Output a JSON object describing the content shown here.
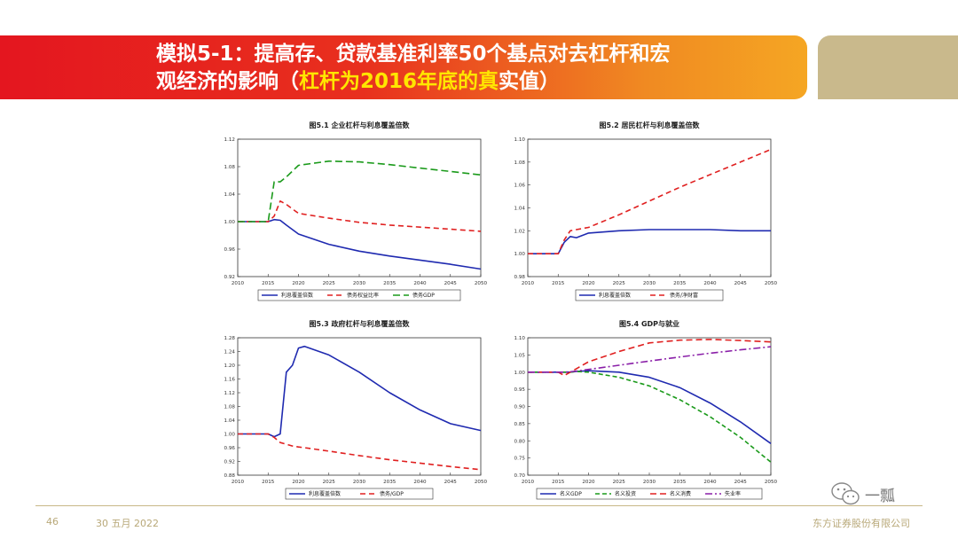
{
  "slide": {
    "title_line1": "模拟5-1：提高存、贷款基准利率50个基点对去杠杆和宏",
    "title_line2_prefix": "观经济的影响（",
    "title_line2_highlight": "杠杆为2016年底的真",
    "title_line2_suffix": "实值）",
    "page_number": "46",
    "date": "30 五月 2022",
    "company": "东方证券股份有限公司",
    "watermark": "一瓢",
    "colors": {
      "banner_red": "#e4161f",
      "banner_orange": "#f5a623",
      "tan": "#c9b98c",
      "blue": "#1f2ab0",
      "red": "#e02020",
      "green": "#1a9a1a",
      "purple": "#8a1fa8"
    }
  },
  "chart_data": [
    {
      "type": "line",
      "title": "图5.1  企业杠杆与利息覆盖倍数",
      "xlim": [
        2010,
        2050
      ],
      "ylim": [
        0.92,
        1.12
      ],
      "xticks": [
        "2010",
        "2015",
        "2020",
        "2025",
        "2030",
        "2035",
        "2040",
        "2045",
        "2050"
      ],
      "yticks": [
        "0.92",
        "0.96",
        "1.00",
        "1.04",
        "1.08",
        "1.12"
      ],
      "x": [
        2010,
        2014,
        2015,
        2016,
        2017,
        2018,
        2020,
        2025,
        2030,
        2035,
        2040,
        2045,
        2050
      ],
      "series": [
        {
          "name": "利息覆盖倍数",
          "color": "#1f2ab0",
          "dash": "",
          "values": [
            1.0,
            1.0,
            1.0,
            1.003,
            1.002,
            0.995,
            0.982,
            0.967,
            0.957,
            0.95,
            0.944,
            0.938,
            0.931
          ]
        },
        {
          "name": "债务权益比率",
          "color": "#e02020",
          "dash": "6 4",
          "values": [
            1.0,
            1.0,
            1.0,
            1.008,
            1.03,
            1.025,
            1.012,
            1.005,
            0.999,
            0.995,
            0.992,
            0.989,
            0.986
          ]
        },
        {
          "name": "债务GDP",
          "color": "#1a9a1a",
          "dash": "8 4",
          "values": [
            1.0,
            1.0,
            1.0,
            1.058,
            1.058,
            1.065,
            1.082,
            1.088,
            1.087,
            1.083,
            1.078,
            1.073,
            1.068
          ]
        }
      ]
    },
    {
      "type": "line",
      "title": "图5.2  居民杠杆与利息覆盖倍数",
      "xlim": [
        2010,
        2050
      ],
      "ylim": [
        0.98,
        1.1
      ],
      "xticks": [
        "2010",
        "2015",
        "2020",
        "2025",
        "2030",
        "2035",
        "2040",
        "2045",
        "2050"
      ],
      "yticks": [
        "0.98",
        "1.00",
        "1.02",
        "1.04",
        "1.06",
        "1.08",
        "1.10"
      ],
      "x": [
        2010,
        2014,
        2015,
        2016,
        2017,
        2018,
        2020,
        2025,
        2030,
        2035,
        2040,
        2045,
        2050
      ],
      "series": [
        {
          "name": "利息覆盖倍数",
          "color": "#1f2ab0",
          "dash": "",
          "values": [
            1.0,
            1.0,
            1.0,
            1.01,
            1.015,
            1.014,
            1.018,
            1.02,
            1.021,
            1.021,
            1.021,
            1.02,
            1.02
          ]
        },
        {
          "name": "债务/净财富",
          "color": "#e02020",
          "dash": "6 4",
          "values": [
            1.0,
            1.0,
            1.0,
            1.012,
            1.02,
            1.021,
            1.023,
            1.034,
            1.046,
            1.058,
            1.069,
            1.08,
            1.091
          ]
        }
      ]
    },
    {
      "type": "line",
      "title": "图5.3  政府杠杆与利息覆盖倍数",
      "xlim": [
        2010,
        2050
      ],
      "ylim": [
        0.88,
        1.28
      ],
      "xticks": [
        "2010",
        "2015",
        "2020",
        "2025",
        "2030",
        "2035",
        "2040",
        "2045",
        "2050"
      ],
      "yticks": [
        "0.88",
        "0.92",
        "0.96",
        "1.00",
        "1.04",
        "1.08",
        "1.12",
        "1.16",
        "1.20",
        "1.24",
        "1.28"
      ],
      "x": [
        2010,
        2014,
        2015,
        2016,
        2017,
        2018,
        2019,
        2020,
        2021,
        2025,
        2030,
        2035,
        2040,
        2045,
        2050
      ],
      "series": [
        {
          "name": "利息覆盖倍数",
          "color": "#1f2ab0",
          "dash": "",
          "values": [
            1.0,
            1.0,
            1.0,
            0.992,
            1.0,
            1.18,
            1.2,
            1.25,
            1.255,
            1.23,
            1.18,
            1.12,
            1.07,
            1.03,
            1.01
          ]
        },
        {
          "name": "债务/GDP",
          "color": "#e02020",
          "dash": "6 4",
          "values": [
            1.0,
            1.0,
            1.0,
            0.99,
            0.975,
            0.97,
            0.965,
            0.962,
            0.96,
            0.95,
            0.937,
            0.925,
            0.915,
            0.905,
            0.896
          ]
        }
      ]
    },
    {
      "type": "line",
      "title": "图5.4  GDP与就业",
      "xlim": [
        2010,
        2050
      ],
      "ylim": [
        0.7,
        1.1
      ],
      "xticks": [
        "2010",
        "2015",
        "2020",
        "2025",
        "2030",
        "2035",
        "2040",
        "2045",
        "2050"
      ],
      "yticks": [
        "0.70",
        "0.75",
        "0.80",
        "0.85",
        "0.90",
        "0.95",
        "1.00",
        "1.05",
        "1.10"
      ],
      "x": [
        2010,
        2014,
        2015,
        2016,
        2017,
        2018,
        2020,
        2025,
        2030,
        2035,
        2040,
        2045,
        2050
      ],
      "series": [
        {
          "name": "名义GDP",
          "color": "#1f2ab0",
          "dash": "",
          "values": [
            1.0,
            1.0,
            1.0,
            1.0,
            1.0,
            1.002,
            1.004,
            1.0,
            0.985,
            0.955,
            0.91,
            0.855,
            0.792
          ]
        },
        {
          "name": "名义投资",
          "color": "#1a9a1a",
          "dash": "5 3",
          "values": [
            1.0,
            1.0,
            1.0,
            1.0,
            1.0,
            1.002,
            1.0,
            0.985,
            0.96,
            0.92,
            0.87,
            0.81,
            0.738
          ]
        },
        {
          "name": "名义消费",
          "color": "#e02020",
          "dash": "7 4",
          "values": [
            1.0,
            1.0,
            1.0,
            0.99,
            1.0,
            1.01,
            1.03,
            1.06,
            1.085,
            1.093,
            1.095,
            1.092,
            1.088
          ]
        },
        {
          "name": "失业率",
          "color": "#8a1fa8",
          "dash": "8 3 2 3",
          "values": [
            1.0,
            1.0,
            1.0,
            1.0,
            1.001,
            1.003,
            1.008,
            1.02,
            1.032,
            1.044,
            1.055,
            1.065,
            1.074
          ]
        }
      ]
    }
  ]
}
